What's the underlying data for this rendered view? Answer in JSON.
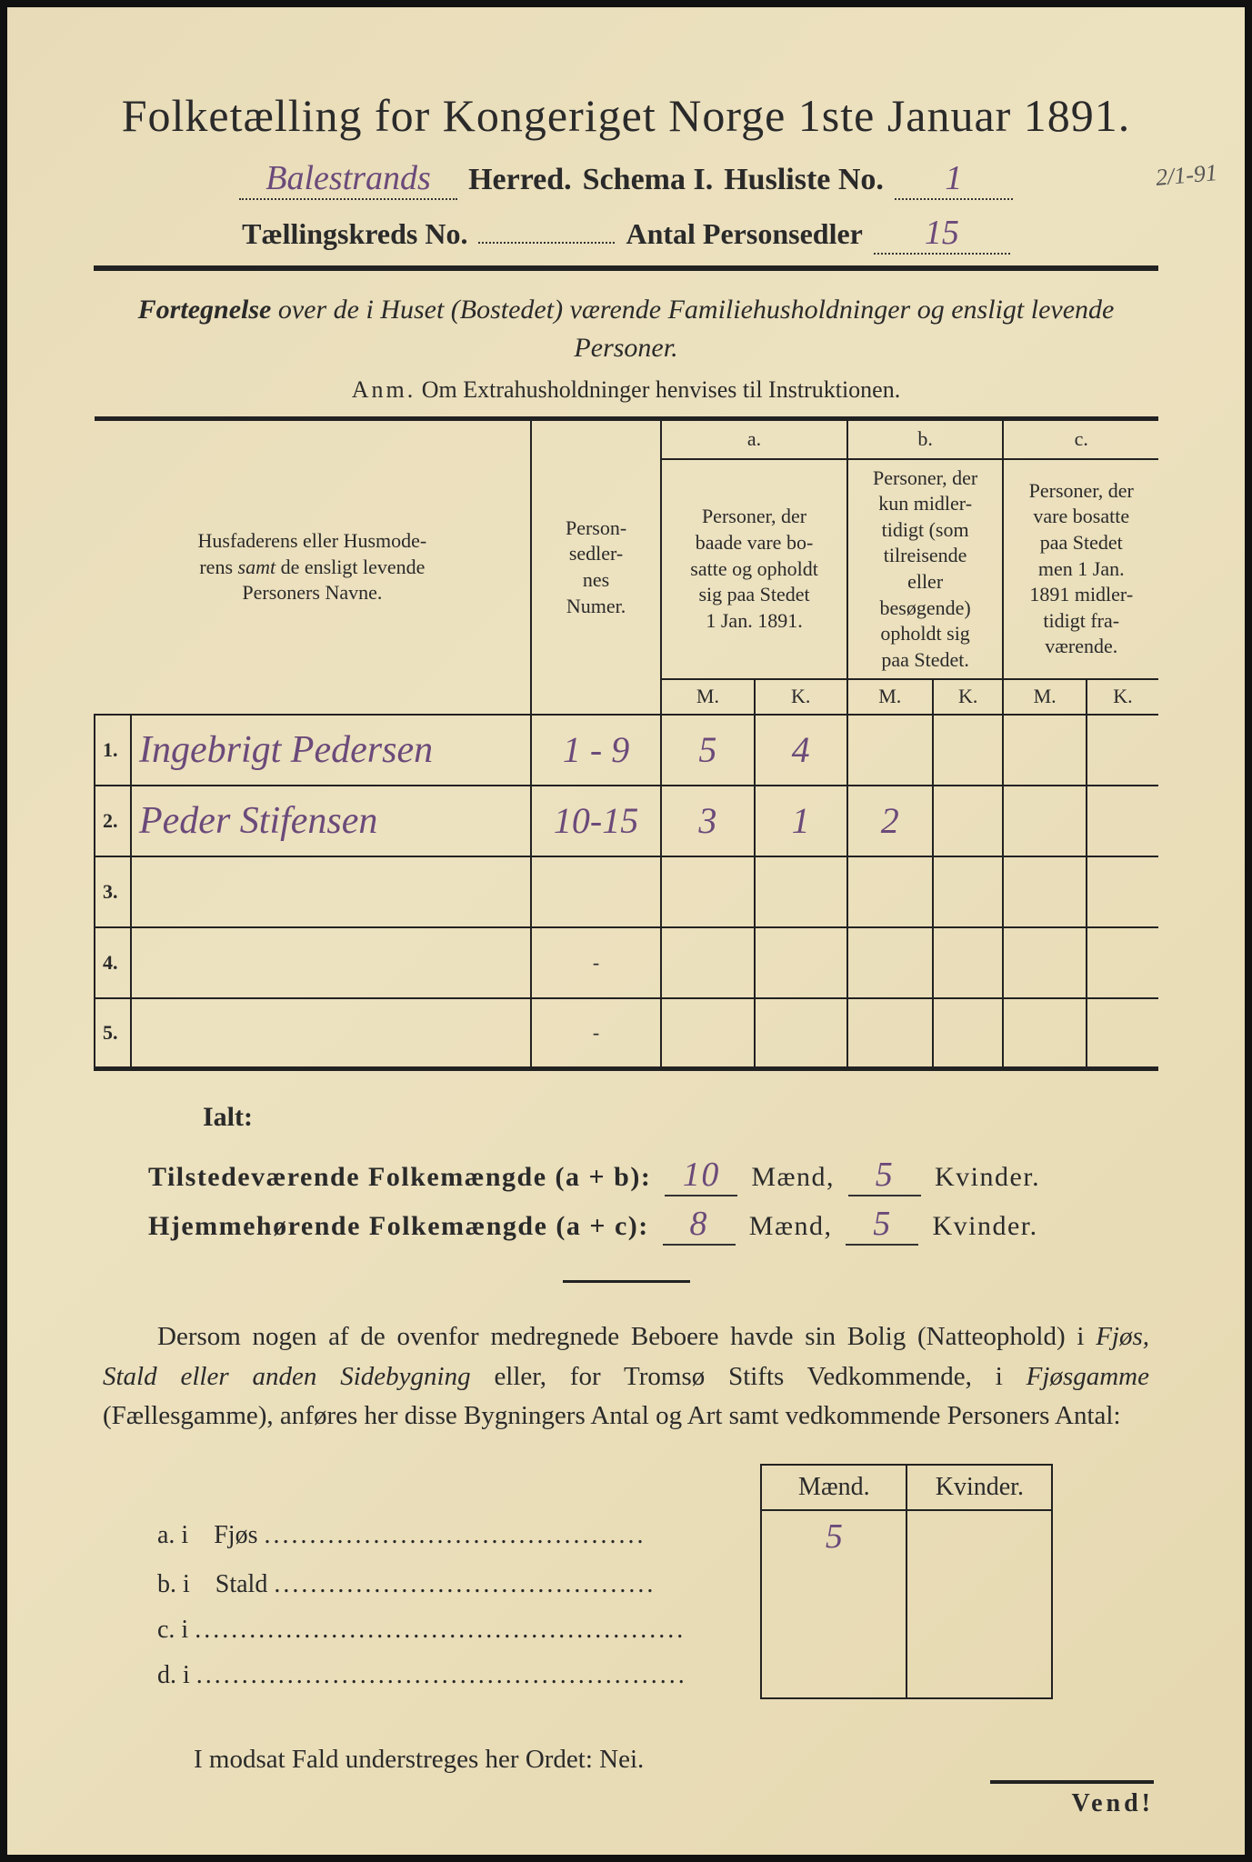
{
  "title": "Folketælling for Kongeriget Norge 1ste Januar 1891.",
  "header": {
    "herred_value": "Balestrands",
    "herred_label": "Herred.",
    "schema_label": "Schema I.",
    "husliste_label": "Husliste No.",
    "husliste_value": "1",
    "margin_date": "2/1-91",
    "kreds_label": "Tællingskreds No.",
    "kreds_value": "",
    "antal_label": "Antal Personsedler",
    "antal_value": "15"
  },
  "subtitle": "Fortegnelse over de i Huset (Bostedet) værende Familiehusholdninger og ensligt levende Personer.",
  "anm_label": "Anm.",
  "anm_text": "Om Extrahusholdninger henvises til Instruktionen.",
  "table": {
    "col1": "Husfaderens eller Husmoderens samt de ensligt levende Personers Navne.",
    "col2": "Personsedlernes Numer.",
    "col_a_label": "a.",
    "col_a": "Personer, der baade vare bosatte og opholdt sig paa Stedet 1 Jan. 1891.",
    "col_b_label": "b.",
    "col_b": "Personer, der kun midlertidigt (som tilreisende eller besøgende) opholdt sig paa Stedet.",
    "col_c_label": "c.",
    "col_c": "Personer, der vare bosatte paa Stedet men 1 Jan. 1891 midlertidigt fraværende.",
    "m": "M.",
    "k": "K.",
    "rows": [
      {
        "num": "1.",
        "name": "Ingebrigt Pedersen",
        "sedler": "1 - 9",
        "a_m": "5",
        "a_k": "4",
        "b_m": "",
        "b_k": "",
        "c_m": "",
        "c_k": ""
      },
      {
        "num": "2.",
        "name": "Peder Stifensen",
        "sedler": "10-15",
        "a_m": "3",
        "a_k": "1",
        "b_m": "2",
        "b_k": "",
        "c_m": "",
        "c_k": ""
      },
      {
        "num": "3.",
        "name": "",
        "sedler": "",
        "a_m": "",
        "a_k": "",
        "b_m": "",
        "b_k": "",
        "c_m": "",
        "c_k": ""
      },
      {
        "num": "4.",
        "name": "",
        "sedler": "-",
        "a_m": "",
        "a_k": "",
        "b_m": "",
        "b_k": "",
        "c_m": "",
        "c_k": ""
      },
      {
        "num": "5.",
        "name": "",
        "sedler": "-",
        "a_m": "",
        "a_k": "",
        "b_m": "",
        "b_k": "",
        "c_m": "",
        "c_k": ""
      }
    ]
  },
  "ialt": "Ialt:",
  "summary": {
    "line1_label": "Tilstedeværende Folkemængde (a + b):",
    "line1_m": "10",
    "line1_k": "5",
    "line2_label": "Hjemmehørende Folkemængde (a + c):",
    "line2_m": "8",
    "line2_k": "5",
    "maend": "Mænd,",
    "kvinder": "Kvinder."
  },
  "paragraph": "Dersom nogen af de ovenfor medregnede Beboere havde sin Bolig (Natteophold) i Fjøs, Stald eller anden Sidebygning eller, for Tromsø Stifts Vedkommende, i Fjøsgamme (Fællesgamme), anføres her disse Bygningers Antal og Art samt vedkommende Personers Antal:",
  "lower": {
    "maend": "Mænd.",
    "kvinder": "Kvinder.",
    "rows": [
      {
        "lbl": "a.  i",
        "name": "Fjøs",
        "m": "5",
        "k": ""
      },
      {
        "lbl": "b.  i",
        "name": "Stald",
        "m": "",
        "k": ""
      },
      {
        "lbl": "c.  i",
        "name": "",
        "m": "",
        "k": ""
      },
      {
        "lbl": "d.  i",
        "name": "",
        "m": "",
        "k": ""
      }
    ]
  },
  "nei_line": "I modsat Fald understreges her Ordet: Nei.",
  "vend": "Vend!"
}
